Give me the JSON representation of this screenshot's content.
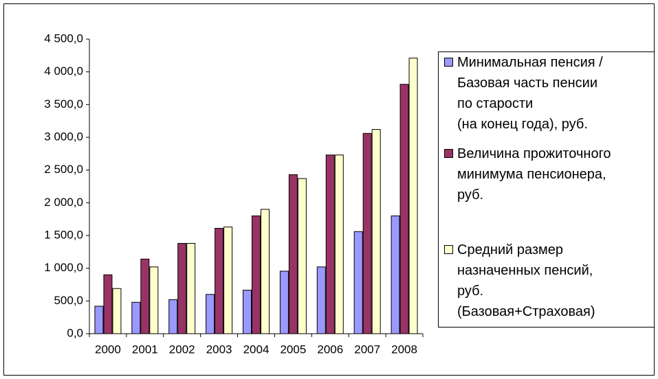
{
  "chart_data": {
    "type": "bar",
    "categories": [
      "2000",
      "2001",
      "2002",
      "2003",
      "2004",
      "2005",
      "2006",
      "2007",
      "2008"
    ],
    "series": [
      {
        "name": "Минимальная пенсия /\nБазовая часть пенсии\nпо старости\n(на конец года), руб.",
        "color": "#9999ff",
        "values": [
          420,
          480,
          520,
          600,
          665,
          955,
          1020,
          1560,
          1800
        ]
      },
      {
        "name": "Величина прожиточного\nминимума пенсионера,\nруб.",
        "color": "#993366",
        "values": [
          900,
          1140,
          1380,
          1610,
          1800,
          2430,
          2730,
          3060,
          3810
        ]
      },
      {
        "name": "Средний размер\nназначенных пенсий,\nруб.\n(Базовая+Страховая)",
        "color": "#ffffcc",
        "values": [
          690,
          1020,
          1380,
          1630,
          1900,
          2370,
          2730,
          3120,
          4210
        ]
      }
    ],
    "ylim": [
      0,
      4500
    ],
    "yticks": [
      {
        "value": 0,
        "label": "0,0"
      },
      {
        "value": 500,
        "label": "500,0"
      },
      {
        "value": 1000,
        "label": "1 000,0"
      },
      {
        "value": 1500,
        "label": "1 500,0"
      },
      {
        "value": 2000,
        "label": "2 000,0"
      },
      {
        "value": 2500,
        "label": "2 500,0"
      },
      {
        "value": 3000,
        "label": "3 000,0"
      },
      {
        "value": 3500,
        "label": "3 500,0"
      },
      {
        "value": 4000,
        "label": "4 000,0"
      },
      {
        "value": 4500,
        "label": "4 500,0"
      }
    ],
    "grid": false
  }
}
